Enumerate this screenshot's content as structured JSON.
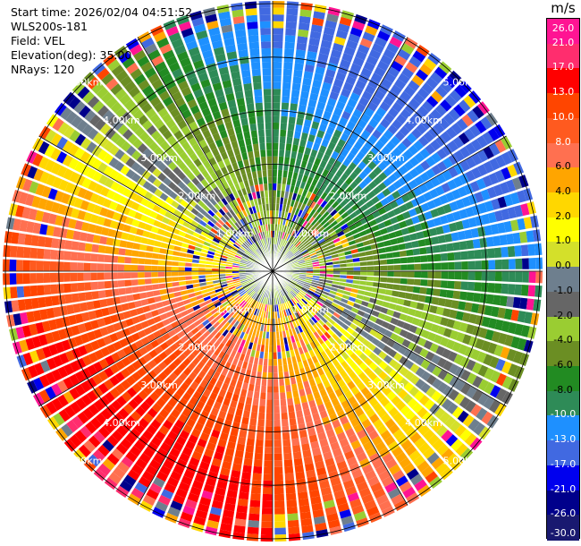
{
  "header": {
    "start_time": "Start time: 2026/02/04 04:51:52",
    "instrument": "WLS200s-181",
    "field": "Field: VEL",
    "elevation": "Elevation(deg): 35.00",
    "nrays": "NRays: 120"
  },
  "colorbar": {
    "unit": "m/s",
    "ticks": [
      "26.0",
      "21.0",
      "17.0",
      "13.0",
      "10.0",
      "8.0",
      "6.0",
      "4.0",
      "2.0",
      "1.0",
      "0.0",
      "-1.0",
      "-2.0",
      "-4.0",
      "-6.0",
      "-8.0",
      "-10.0",
      "-13.0",
      "-17.0",
      "-21.0",
      "-26.0",
      "-30.0"
    ],
    "colors": [
      "#ff1493",
      "#ff2d6e",
      "#ff0000",
      "#ff4500",
      "#ff5a1f",
      "#ff7050",
      "#ffa500",
      "#ffd700",
      "#ffff00",
      "#d4e02a",
      "#6e7f8e",
      "#666666",
      "#9acd32",
      "#6b8e23",
      "#228b22",
      "#2e8b57",
      "#1e90ff",
      "#4169e1",
      "#0000ee",
      "#00008b",
      "#191970",
      "#191970"
    ]
  },
  "chart_data": {
    "type": "ppi",
    "field": "VEL",
    "nrays": 120,
    "elevation_deg": 35.0,
    "range_rings_km": [
      1.0,
      2.0,
      3.0,
      4.0,
      5.0
    ],
    "ring_labels": [
      "1.00km",
      "2.00km",
      "3.00km",
      "4.00km",
      "5.00km"
    ],
    "max_range_km": 5.05,
    "colorbar_range": [
      -30.0,
      26.0
    ],
    "units": "m/s"
  }
}
